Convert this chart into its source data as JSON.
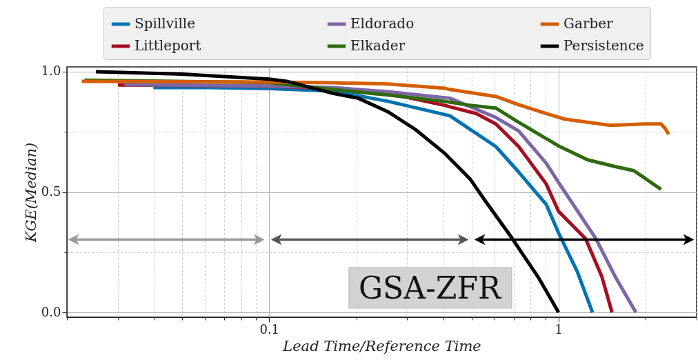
{
  "chart_data": {
    "type": "line",
    "xlabel": "Lead Time/Reference Time",
    "ylabel": "KGE(Median)",
    "log": "x",
    "grid": true,
    "legend": "top",
    "xlim": [
      0.02,
      3.0
    ],
    "xticks": [
      {
        "value": 0.02,
        "label": null
      },
      {
        "value": 0.03,
        "label": null
      },
      {
        "value": 0.04,
        "label": null
      },
      {
        "value": 0.05,
        "label": null
      },
      {
        "value": 0.06,
        "label": null
      },
      {
        "value": 0.07,
        "label": null
      },
      {
        "value": 0.08,
        "label": null
      },
      {
        "value": 0.09,
        "label": null
      },
      {
        "value": 0.1,
        "label": "0.1"
      },
      {
        "value": 0.2,
        "label": null
      },
      {
        "value": 0.3,
        "label": null
      },
      {
        "value": 0.4,
        "label": null
      },
      {
        "value": 0.5,
        "label": null
      },
      {
        "value": 0.6,
        "label": null
      },
      {
        "value": 0.7,
        "label": null
      },
      {
        "value": 0.8,
        "label": null
      },
      {
        "value": 0.9,
        "label": null
      },
      {
        "value": 1,
        "label": "1"
      },
      {
        "value": 2,
        "label": null
      },
      {
        "value": 3,
        "label": null
      }
    ],
    "ylim": [
      -0.02,
      1.02
    ],
    "yticks": [
      {
        "value": 0,
        "label": "0.0"
      },
      {
        "value": 0.25,
        "label": null
      },
      {
        "value": 0.5,
        "label": "0.5"
      },
      {
        "value": 0.75,
        "label": null
      },
      {
        "value": 1,
        "label": "1.0"
      }
    ],
    "series": [
      {
        "name": "Spillville",
        "color": "#0173b2",
        "x": [
          0.0398,
          0.0617,
          0.1,
          0.166,
          0.257,
          0.421,
          0.607,
          0.728,
          0.906,
          1.0,
          1.16,
          1.31
        ],
        "values": [
          0.934,
          0.934,
          0.93,
          0.92,
          0.877,
          0.817,
          0.689,
          0.583,
          0.449,
          0.33,
          0.17,
          0.0
        ]
      },
      {
        "name": "Littleport",
        "color": "#a50f1f",
        "x": [
          0.03,
          0.1,
          0.166,
          0.257,
          0.405,
          0.421,
          0.52,
          0.607,
          0.728,
          0.906,
          1.0,
          1.24,
          1.41,
          1.53
        ],
        "values": [
          0.945,
          0.94,
          0.93,
          0.91,
          0.86,
          0.854,
          0.826,
          0.783,
          0.689,
          0.534,
          0.42,
          0.306,
          0.15,
          0.0
        ]
      },
      {
        "name": "Eldorado",
        "color": "#7b66a6",
        "x": [
          0.0316,
          0.1,
          0.166,
          0.257,
          0.421,
          0.607,
          0.728,
          0.906,
          1.0,
          1.346,
          1.567,
          1.85
        ],
        "values": [
          0.946,
          0.94,
          0.934,
          0.917,
          0.89,
          0.81,
          0.754,
          0.62,
          0.54,
          0.306,
          0.15,
          0.0
        ]
      },
      {
        "name": "Elkader",
        "color": "#2f6a10",
        "x": [
          0.023,
          0.1,
          0.166,
          0.257,
          0.405,
          0.495,
          0.607,
          0.728,
          0.872,
          1.01,
          1.259,
          1.567,
          1.82,
          2.26
        ],
        "values": [
          0.965,
          0.955,
          0.926,
          0.903,
          0.877,
          0.86,
          0.849,
          0.79,
          0.734,
          0.689,
          0.634,
          0.606,
          0.589,
          0.511
        ]
      },
      {
        "name": "Garber",
        "color": "#d55e00",
        "x": [
          0.0225,
          0.1,
          0.166,
          0.257,
          0.405,
          0.421,
          0.607,
          0.728,
          0.906,
          1.05,
          1.51,
          1.99,
          2.26,
          2.34,
          2.4
        ],
        "values": [
          0.96,
          0.957,
          0.954,
          0.949,
          0.931,
          0.926,
          0.897,
          0.863,
          0.826,
          0.803,
          0.777,
          0.783,
          0.783,
          0.763,
          0.74
        ]
      },
      {
        "name": "Persistence",
        "color": "#000000",
        "x": [
          0.0252,
          0.05,
          0.1,
          0.115,
          0.166,
          0.203,
          0.257,
          0.32,
          0.405,
          0.495,
          0.553,
          0.689,
          0.857,
          1.0
        ],
        "values": [
          1.0,
          0.99,
          0.969,
          0.96,
          0.91,
          0.89,
          0.834,
          0.76,
          0.66,
          0.554,
          0.47,
          0.31,
          0.14,
          0.0
        ]
      }
    ],
    "annotations": [
      "GSA-ZFR"
    ]
  }
}
